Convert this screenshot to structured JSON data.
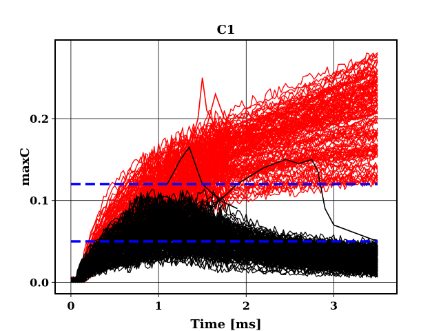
{
  "chart_data": {
    "type": "line",
    "title": "C1",
    "xlabel": "Time [ms]",
    "ylabel": "maxC",
    "xlim": [
      -0.18,
      3.72
    ],
    "ylim": [
      -0.014,
      0.296
    ],
    "xticks": [
      0,
      1,
      2,
      3
    ],
    "yticks": [
      0.0,
      0.1,
      0.2
    ],
    "x_tick_labels": [
      "0",
      "1",
      "2",
      "3"
    ],
    "y_tick_labels": [
      "0.0",
      "0.1",
      "0.2"
    ],
    "grid": true,
    "legend": "none",
    "thresholds": [
      {
        "y": 0.12,
        "style": "dashed",
        "color": "#0000ff"
      },
      {
        "y": 0.05,
        "style": "dashed",
        "color": "#0000ff"
      }
    ],
    "series_groups": [
      {
        "color": "#ff0000",
        "count": 120,
        "x_range": [
          0,
          3.5
        ],
        "final_y_range": [
          0.12,
          0.28
        ]
      },
      {
        "color": "#000000",
        "count": 160,
        "x_range": [
          0,
          3.5
        ],
        "final_y_range": [
          0.005,
          0.06
        ]
      }
    ],
    "colors": {
      "exceed": "#ff0000",
      "below": "#000000",
      "threshold": "#0000ff"
    }
  }
}
